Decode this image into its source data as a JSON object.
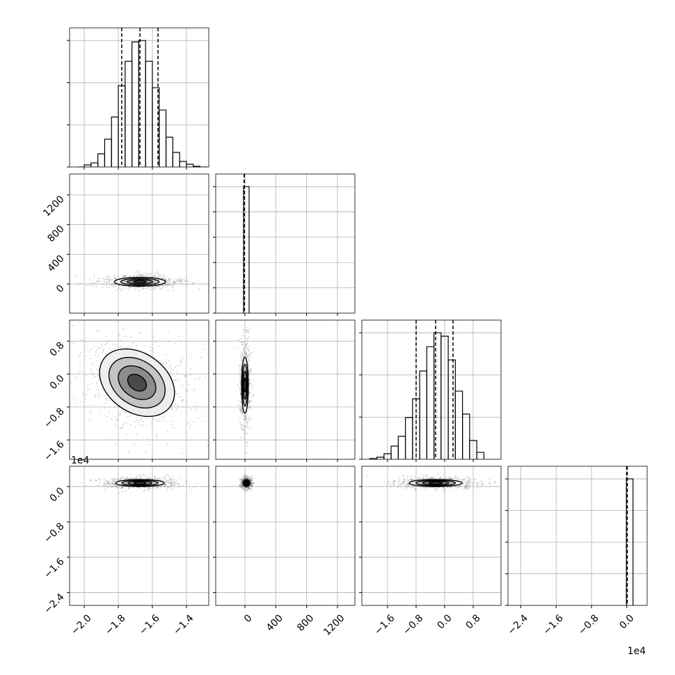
{
  "chart_data": {
    "type": "corner",
    "grid": true,
    "color": "#000000",
    "levels": [
      0.5,
      1,
      1.5,
      2
    ],
    "parameters": [
      {
        "xlim": [
          -2.086,
          -1.269
        ],
        "ticks": [
          {
            "value": -2.0,
            "label": "−2.0"
          },
          {
            "value": -1.8,
            "label": "−1.8"
          },
          {
            "value": -1.6,
            "label": "−1.6"
          },
          {
            "value": -1.4,
            "label": "−1.4"
          }
        ],
        "hist": {
          "bins": [
            -2.04,
            -2.0,
            -1.96,
            -1.92,
            -1.88,
            -1.84,
            -1.8,
            -1.76,
            -1.72,
            -1.68,
            -1.64,
            -1.6,
            -1.56,
            -1.52,
            -1.48,
            -1.44,
            -1.4,
            -1.36,
            -1.32,
            -1.28
          ],
          "counts": [
            0,
            25,
            49,
            157,
            330,
            593,
            964,
            1253,
            1483,
            1500,
            1253,
            940,
            676,
            354,
            173,
            66,
            33,
            8,
            0
          ],
          "ylim": [
            0,
            1650
          ],
          "yticks": [
            0,
            500,
            1000,
            1500
          ]
        },
        "quantiles": [
          -1.78,
          -1.673,
          -1.567
        ]
      },
      {
        "xlim": [
          -379,
          1426
        ],
        "ylim": [
          -393,
          1481
        ],
        "ticks": [
          0,
          400,
          800,
          1200
        ],
        "hist": {
          "bins": [
            -18,
            54
          ],
          "counts": [
            10000
          ],
          "ylim": [
            0,
            11000
          ],
          "yticks": [
            0,
            2000,
            4000,
            6000,
            8000,
            10000
          ]
        },
        "quantiles": [
          -10,
          -9,
          -8
        ]
      },
      {
        "xlim": [
          -2.32,
          1.58
        ],
        "ylim": [
          -2.07,
          1.31
        ],
        "ticks": [
          {
            "value": -1.6,
            "label": "−1.6"
          },
          {
            "value": -0.8,
            "label": "−0.8"
          },
          {
            "value": 0,
            "label": "0.0"
          },
          {
            "value": 0.8,
            "label": "0.8"
          }
        ],
        "hist": {
          "bins": [
            -2.1,
            -1.9,
            -1.7,
            -1.5,
            -1.3,
            -1.1,
            -0.9,
            -0.7,
            -0.5,
            -0.3,
            -0.1,
            0.1,
            0.3,
            0.5,
            0.7,
            0.9,
            1.1
          ],
          "counts": [
            8,
            25,
            66,
            157,
            272,
            495,
            717,
            1047,
            1335,
            1500,
            1459,
            1178,
            808,
            536,
            223,
            82
          ],
          "ylim": [
            0,
            1650
          ],
          "yticks": [
            0,
            500,
            1000,
            1500
          ]
        },
        "quantiles": [
          -0.799,
          -0.253,
          0.235
        ]
      },
      {
        "xlim": [
          -2.69,
          0.46
        ],
        "ylim": [
          -2.69,
          0.46
        ],
        "offset_label": "1e4",
        "ticks": [
          {
            "value": -2.4,
            "label": "−2.4"
          },
          {
            "value": -1.6,
            "label": "−1.6"
          },
          {
            "value": -0.8,
            "label": "−0.8"
          },
          {
            "value": 0,
            "label": "0.0"
          }
        ],
        "hist": {
          "bins": [
            -0.01,
            0.14
          ],
          "counts": [
            10000
          ],
          "ylim": [
            0,
            11000
          ],
          "yticks": [
            0,
            2500,
            5000,
            7500,
            10000
          ]
        },
        "quantiles": [
          -0.005,
          0.003,
          0.01
        ]
      }
    ],
    "pairs": [
      {
        "x_param": 0,
        "y_param": 1,
        "mean": [
          -1.673,
          29
        ],
        "sigma": [
          0.075,
          30
        ],
        "rho": 0
      },
      {
        "x_param": 0,
        "y_param": 2,
        "mean": [
          -1.69,
          -0.21
        ],
        "sigma": [
          0.11,
          0.41
        ],
        "rho": -0.3
      },
      {
        "x_param": 1,
        "y_param": 2,
        "mean": [
          0,
          -0.27
        ],
        "sigma": [
          22,
          0.34
        ],
        "rho": 0
      },
      {
        "x_param": 0,
        "y_param": 3,
        "mean": [
          -1.673,
          0.08
        ],
        "sigma": [
          0.071,
          0.04
        ],
        "rho": 0
      },
      {
        "x_param": 1,
        "y_param": 3,
        "mean": [
          20,
          0.08
        ],
        "sigma": [
          22,
          0.04
        ],
        "rho": 0
      },
      {
        "x_param": 2,
        "y_param": 3,
        "mean": [
          -0.253,
          0.08
        ],
        "sigma": [
          0.37,
          0.04
        ],
        "rho": 0
      }
    ]
  }
}
